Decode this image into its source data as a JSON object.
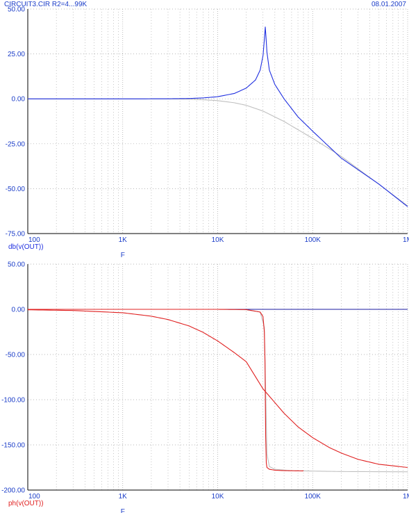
{
  "header": {
    "title": "CIRCUIT3.CIR R2=4...99K",
    "date": "08.01.2007"
  },
  "colors": {
    "header_text": "#1a3cc8",
    "magnitude_trace": "#1f2fe0",
    "phase_trace": "#e02020",
    "reference_trace": "#c0c0c0",
    "zero_line_phase": "#1a1aa0",
    "grid": "#a0a0a0",
    "axis": "#000000"
  },
  "chart_data": [
    {
      "type": "line",
      "name": "magnitude",
      "ylabel": "db(v(OUT))",
      "ylabel_color": "#1f2fe0",
      "xlabel": "F",
      "x_scale": "log",
      "xlim": [
        100,
        1000000
      ],
      "ylim": [
        -75,
        50
      ],
      "y_ticks": [
        50,
        25,
        0,
        -25,
        -50,
        -75
      ],
      "y_tick_labels": [
        "50.00",
        "25.00",
        "0.00",
        "-25.00",
        "-50.00",
        "-75.00"
      ],
      "x_ticks": [
        100,
        1000,
        10000,
        100000,
        1000000
      ],
      "x_tick_labels": [
        "100",
        "1K",
        "10K",
        "100K",
        "1M"
      ],
      "grid": true,
      "series": [
        {
          "color": "#c0c0c0",
          "x": [
            100,
            1000,
            3000,
            5000,
            7000,
            10000,
            15000,
            20000,
            30000,
            50000,
            100000,
            200000,
            500000,
            1000000
          ],
          "y": [
            0,
            0,
            -0.05,
            -0.2,
            -0.5,
            -1.0,
            -2.2,
            -3.6,
            -6.8,
            -12.6,
            -22.0,
            -32.0,
            -47.6,
            -59.6
          ]
        },
        {
          "color": "#1f2fe0",
          "x": [
            100,
            1000,
            3000,
            5000,
            7000,
            10000,
            15000,
            20000,
            25000,
            28000,
            30000,
            31000,
            31700,
            32300,
            33000,
            35000,
            40000,
            50000,
            70000,
            100000,
            200000,
            500000,
            1000000
          ],
          "y": [
            0,
            0,
            0.05,
            0.2,
            0.5,
            1.2,
            3.0,
            6.0,
            10.5,
            16.0,
            24.0,
            33.0,
            40.0,
            34.0,
            26.0,
            16.0,
            8.0,
            0,
            -10.0,
            -18.0,
            -33.0,
            -47.5,
            -60.0
          ]
        }
      ]
    },
    {
      "type": "line",
      "name": "phase",
      "ylabel": "ph(v(OUT))",
      "ylabel_color": "#e02020",
      "xlabel": "F",
      "x_scale": "log",
      "xlim": [
        100,
        1000000
      ],
      "ylim": [
        -200,
        50
      ],
      "y_ticks": [
        50,
        0,
        -50,
        -100,
        -150,
        -200
      ],
      "y_tick_labels": [
        "50.00",
        "0.00",
        "-50.00",
        "-100.00",
        "-150.00",
        "-200.00"
      ],
      "x_ticks": [
        100,
        1000,
        10000,
        100000,
        1000000
      ],
      "x_tick_labels": [
        "100",
        "1K",
        "10K",
        "100K",
        "1M"
      ],
      "grid": true,
      "series": [
        {
          "color": "#c0c0c0",
          "x": [
            100,
            10000,
            20000,
            28000,
            31000,
            32000,
            33000,
            35000,
            40000,
            60000,
            100000,
            200000,
            1000000
          ],
          "y": [
            0,
            0,
            -0.5,
            -3,
            -20,
            -90,
            -160,
            -174,
            -177,
            -178.5,
            -179,
            -179.5,
            -179.8
          ]
        },
        {
          "color": "#1a1aa0",
          "x": [
            100,
            1000000
          ],
          "y": [
            0,
            0
          ]
        },
        {
          "color": "#e02020",
          "x": [
            100,
            300,
            1000,
            2000,
            3000,
            5000,
            7000,
            10000,
            15000,
            20000,
            30000,
            50000,
            70000,
            100000,
            150000,
            200000,
            300000,
            500000,
            1000000
          ],
          "y": [
            -0.5,
            -1.3,
            -3.8,
            -7.6,
            -11.3,
            -18.4,
            -25.4,
            -35,
            -48,
            -58,
            -88,
            -115,
            -130,
            -142,
            -153,
            -159,
            -166,
            -171.5,
            -175
          ]
        },
        {
          "color": "#e02020",
          "x": [
            100,
            10000,
            20000,
            28000,
            30000,
            31000,
            31500,
            32000,
            32500,
            33000,
            35000,
            40000,
            50000,
            80000
          ],
          "y": [
            0,
            0,
            -0.3,
            -3,
            -8,
            -25,
            -60,
            -140,
            -170,
            -175,
            -177,
            -178,
            -178.5,
            -178.8
          ]
        }
      ]
    }
  ]
}
